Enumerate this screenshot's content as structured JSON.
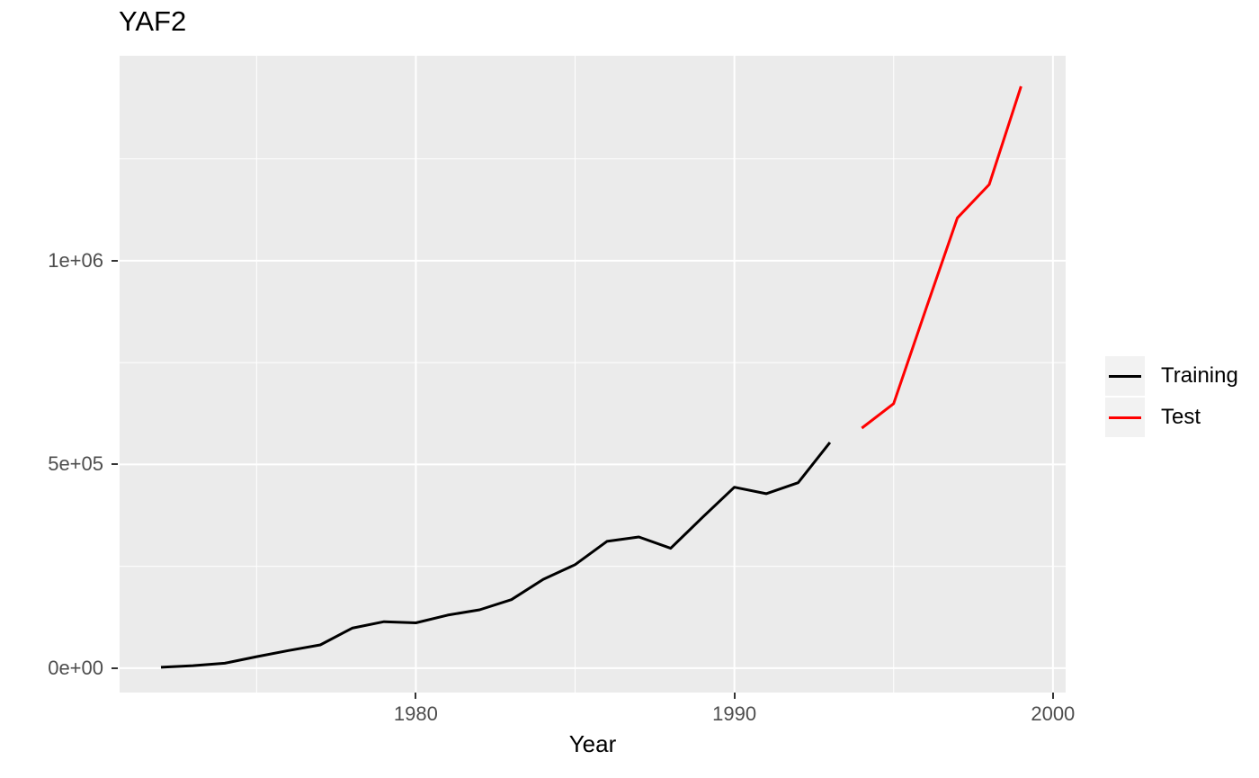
{
  "title": "YAF2",
  "chart_data": {
    "type": "line",
    "title": "YAF2",
    "xlabel": "Year",
    "ylabel": "",
    "xlim": [
      1970.7,
      2000.4
    ],
    "ylim": [
      -60000,
      1503000
    ],
    "grid": true,
    "legend_position": "right",
    "panel_bg": "#EBEBEB",
    "grid_color": "#FFFFFF",
    "axis_text_color": "#4D4D4D",
    "x_major_ticks": [
      {
        "value": 1980,
        "label": "1980"
      },
      {
        "value": 1990,
        "label": "1990"
      },
      {
        "value": 2000,
        "label": "2000"
      }
    ],
    "x_minor_ticks": [
      1975,
      1985,
      1995
    ],
    "y_major_ticks": [
      {
        "value": 0,
        "label": "0e+00"
      },
      {
        "value": 500000,
        "label": "5e+05"
      },
      {
        "value": 1000000,
        "label": "1e+06"
      }
    ],
    "y_minor_ticks": [
      250000,
      750000,
      1250000
    ],
    "series": [
      {
        "name": "Training",
        "color": "#000000",
        "x": [
          1972,
          1973,
          1974,
          1975,
          1976,
          1977,
          1978,
          1979,
          1980,
          1981,
          1982,
          1983,
          1984,
          1985,
          1986,
          1987,
          1988,
          1989,
          1990,
          1991,
          1992,
          1993
        ],
        "values": [
          2000,
          6000,
          12000,
          28000,
          43000,
          57000,
          98000,
          114000,
          111000,
          130000,
          143000,
          168000,
          218000,
          254000,
          311000,
          322000,
          294000,
          370000,
          444000,
          428000,
          455000,
          554000
        ]
      },
      {
        "name": "Test",
        "color": "#FF0000",
        "x": [
          1994,
          1995,
          1996,
          1997,
          1998,
          1999
        ],
        "values": [
          589000,
          649000,
          878000,
          1105000,
          1187000,
          1428000
        ]
      }
    ]
  }
}
